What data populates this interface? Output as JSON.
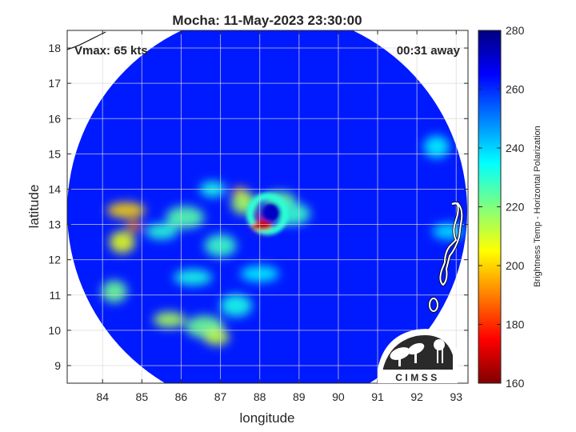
{
  "title": "Mocha: 11-May-2023 23:30:00",
  "annotations": {
    "vmax": "Vmax: 65 kts",
    "time_away": "00:31 away"
  },
  "logo_text": "CIMSS",
  "x_axis": {
    "label": "longitude",
    "range": [
      83.1,
      93.3
    ],
    "ticks": [
      84,
      85,
      86,
      87,
      88,
      89,
      90,
      91,
      92,
      93
    ]
  },
  "y_axis": {
    "label": "latitude",
    "range": [
      8.5,
      18.5
    ],
    "ticks": [
      9,
      10,
      11,
      12,
      13,
      14,
      15,
      16,
      17,
      18
    ]
  },
  "colorbar": {
    "label": "Brightness Temp - Horizontal Polarization",
    "range": [
      160,
      280
    ],
    "ticks": [
      160,
      180,
      200,
      220,
      240,
      260,
      280
    ],
    "colormap": "jet"
  },
  "colors": {
    "background_field": "#1a4fe0",
    "coastline": "#ffffff",
    "grid": "#d9d9d9"
  },
  "chart_data": {
    "type": "heatmap",
    "title": "Mocha: 11-May-2023 23:30:00",
    "xlabel": "longitude",
    "ylabel": "latitude",
    "xlim": [
      83.1,
      93.3
    ],
    "ylim": [
      8.5,
      18.5
    ],
    "clim": [
      160,
      280
    ],
    "grid": true,
    "background_tb": 262,
    "storm_center": {
      "lon": 88.2,
      "lat": 13.3
    },
    "features": [
      {
        "lon": 88.1,
        "lat": 12.95,
        "tb": 168
      },
      {
        "lon": 88.0,
        "lat": 13.05,
        "tb": 180
      },
      {
        "lon": 87.5,
        "lat": 13.9,
        "tb": 195
      },
      {
        "lon": 87.6,
        "lat": 13.6,
        "tb": 215
      },
      {
        "lon": 88.5,
        "lat": 13.7,
        "tb": 222
      },
      {
        "lon": 88.8,
        "lat": 13.3,
        "tb": 228
      },
      {
        "lon": 88.3,
        "lat": 13.35,
        "tb": 272
      },
      {
        "lon": 84.8,
        "lat": 12.95,
        "tb": 188
      },
      {
        "lon": 84.6,
        "lat": 13.4,
        "tb": 200
      },
      {
        "lon": 84.5,
        "lat": 12.5,
        "tb": 208
      },
      {
        "lon": 85.5,
        "lat": 12.8,
        "tb": 230
      },
      {
        "lon": 86.1,
        "lat": 13.2,
        "tb": 225
      },
      {
        "lon": 86.8,
        "lat": 14.0,
        "tb": 232
      },
      {
        "lon": 87.0,
        "lat": 12.4,
        "tb": 228
      },
      {
        "lon": 86.3,
        "lat": 11.5,
        "tb": 232
      },
      {
        "lon": 84.3,
        "lat": 11.1,
        "tb": 222
      },
      {
        "lon": 85.7,
        "lat": 10.3,
        "tb": 215
      },
      {
        "lon": 86.6,
        "lat": 10.1,
        "tb": 222
      },
      {
        "lon": 86.9,
        "lat": 9.8,
        "tb": 212
      },
      {
        "lon": 87.4,
        "lat": 10.7,
        "tb": 232
      },
      {
        "lon": 88.0,
        "lat": 11.6,
        "tb": 236
      },
      {
        "lon": 92.5,
        "lat": 15.2,
        "tb": 236
      },
      {
        "lon": 92.8,
        "lat": 12.8,
        "tb": 238
      }
    ]
  }
}
